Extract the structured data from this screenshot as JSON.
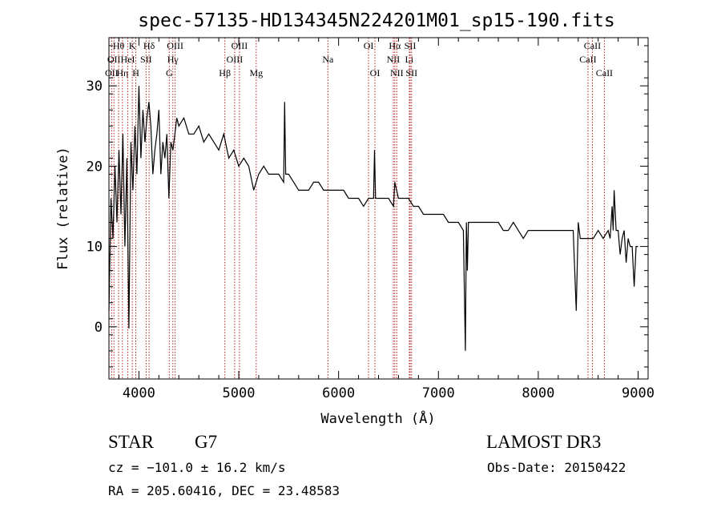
{
  "chart_data": {
    "type": "line",
    "title": "spec-57135-HD134345N224201M01_sp15-190.fits",
    "xlabel": "Wavelength (Å)",
    "ylabel": "Flux (relative)",
    "xlim": [
      3700,
      9100
    ],
    "ylim": [
      -6.5,
      36
    ],
    "xticks": [
      {
        "value": 4000,
        "label": "4000"
      },
      {
        "value": 5000,
        "label": "5000"
      },
      {
        "value": 6000,
        "label": "6000"
      },
      {
        "value": 7000,
        "label": "7000"
      },
      {
        "value": 8000,
        "label": "8000"
      },
      {
        "value": 9000,
        "label": "9000"
      }
    ],
    "yticks": [
      {
        "value": 0,
        "label": "0"
      },
      {
        "value": 10,
        "label": "10"
      },
      {
        "value": 20,
        "label": "20"
      },
      {
        "value": 30,
        "label": "30"
      }
    ],
    "line_color": "#000000",
    "marker_color": "#b22222",
    "series": [
      {
        "name": "flux",
        "x": [
          3700,
          3720,
          3740,
          3760,
          3780,
          3800,
          3820,
          3840,
          3860,
          3880,
          3900,
          3920,
          3940,
          3960,
          3980,
          4000,
          4020,
          4040,
          4060,
          4080,
          4100,
          4120,
          4140,
          4160,
          4180,
          4200,
          4220,
          4240,
          4260,
          4280,
          4300,
          4320,
          4340,
          4360,
          4380,
          4400,
          4450,
          4500,
          4550,
          4600,
          4650,
          4700,
          4750,
          4800,
          4850,
          4900,
          4950,
          5000,
          5050,
          5100,
          5150,
          5200,
          5250,
          5300,
          5350,
          5400,
          5450,
          5460,
          5470,
          5500,
          5550,
          5600,
          5650,
          5700,
          5750,
          5800,
          5850,
          5900,
          5950,
          6000,
          6050,
          6100,
          6150,
          6200,
          6250,
          6300,
          6350,
          6360,
          6370,
          6400,
          6450,
          6500,
          6550,
          6563,
          6600,
          6650,
          6700,
          6750,
          6800,
          6850,
          6900,
          6950,
          7000,
          7050,
          7100,
          7150,
          7200,
          7250,
          7270,
          7280,
          7290,
          7300,
          7350,
          7400,
          7450,
          7500,
          7550,
          7600,
          7650,
          7700,
          7750,
          7800,
          7850,
          7900,
          7950,
          8000,
          8050,
          8100,
          8150,
          8200,
          8250,
          8300,
          8350,
          8380,
          8400,
          8420,
          8450,
          8500,
          8550,
          8600,
          8650,
          8700,
          8720,
          8740,
          8750,
          8760,
          8780,
          8800,
          8820,
          8840,
          8860,
          8880,
          8900,
          8920,
          8940,
          8960,
          8980,
          9000
        ],
        "y": [
          2,
          16,
          11,
          20,
          13,
          22,
          14,
          24,
          10,
          21,
          -0.2,
          23,
          17,
          25,
          19,
          30,
          21,
          27,
          23,
          26,
          28,
          25,
          19,
          22,
          24,
          27,
          19,
          23,
          21,
          24,
          16,
          23,
          22,
          24,
          26,
          25,
          26,
          24,
          24,
          25,
          23,
          24,
          23,
          22,
          24,
          21,
          22,
          20,
          21,
          20,
          17,
          19,
          20,
          19,
          19,
          19,
          18,
          28,
          19,
          19,
          18,
          17,
          17,
          17,
          18,
          18,
          17,
          17,
          17,
          17,
          17,
          16,
          16,
          16,
          15,
          16,
          16,
          22,
          16,
          16,
          16,
          16,
          15,
          18,
          16,
          16,
          16,
          15,
          15,
          14,
          14,
          14,
          14,
          14,
          13,
          13,
          13,
          12,
          -3,
          13,
          7,
          13,
          13,
          13,
          13,
          13,
          13,
          13,
          12,
          12,
          13,
          12,
          11,
          12,
          12,
          12,
          12,
          12,
          12,
          12,
          12,
          12,
          12,
          2,
          13,
          11,
          11,
          11,
          11,
          12,
          11,
          12,
          11,
          15,
          12,
          17,
          12,
          12,
          9,
          11,
          12,
          8,
          11,
          10,
          10,
          5,
          10,
          10
        ]
      }
    ],
    "line_markers": [
      {
        "wavelength": 3727,
        "label": "OII",
        "row": 2
      },
      {
        "wavelength": 3750,
        "label": "OII",
        "row": 1
      },
      {
        "wavelength": 3797,
        "label": "Hθ",
        "row": 0
      },
      {
        "wavelength": 3835,
        "label": "Hη",
        "row": 2
      },
      {
        "wavelength": 3889,
        "label": "HeI",
        "row": 1
      },
      {
        "wavelength": 3934,
        "label": "K",
        "row": 0
      },
      {
        "wavelength": 3969,
        "label": "H",
        "row": 2
      },
      {
        "wavelength": 4072,
        "label": "SII",
        "row": 1
      },
      {
        "wavelength": 4102,
        "label": "Hδ",
        "row": 0
      },
      {
        "wavelength": 4304,
        "label": "G",
        "row": 2
      },
      {
        "wavelength": 4340,
        "label": "Hγ",
        "row": 1
      },
      {
        "wavelength": 4363,
        "label": "OIII",
        "row": 0
      },
      {
        "wavelength": 4861,
        "label": "Hβ",
        "row": 2
      },
      {
        "wavelength": 4959,
        "label": "OIII",
        "row": 1
      },
      {
        "wavelength": 5007,
        "label": "OIII",
        "row": 0
      },
      {
        "wavelength": 5175,
        "label": "Mg",
        "row": 2
      },
      {
        "wavelength": 5893,
        "label": "Na",
        "row": 1
      },
      {
        "wavelength": 6300,
        "label": "OI",
        "row": 0
      },
      {
        "wavelength": 6364,
        "label": "OI",
        "row": 2
      },
      {
        "wavelength": 6548,
        "label": "NII",
        "row": 1
      },
      {
        "wavelength": 6563,
        "label": "Hα",
        "row": 0
      },
      {
        "wavelength": 6583,
        "label": "NII",
        "row": 2
      },
      {
        "wavelength": 6708,
        "label": "Li",
        "row": 1
      },
      {
        "wavelength": 6717,
        "label": "SII",
        "row": 0
      },
      {
        "wavelength": 6731,
        "label": "SII",
        "row": 2
      },
      {
        "wavelength": 8498,
        "label": "CaII",
        "row": 1
      },
      {
        "wavelength": 8542,
        "label": "CaII",
        "row": 0
      },
      {
        "wavelength": 8662,
        "label": "CaII",
        "row": 2
      }
    ]
  },
  "info": {
    "class": "STAR",
    "subclass": "G7",
    "survey": "LAMOST DR3",
    "redshift": "cz = −101.0 ± 16.2 km/s",
    "obs_date": "Obs-Date: 20150422",
    "coords": "RA = 205.60416, DEC =  23.48583"
  }
}
